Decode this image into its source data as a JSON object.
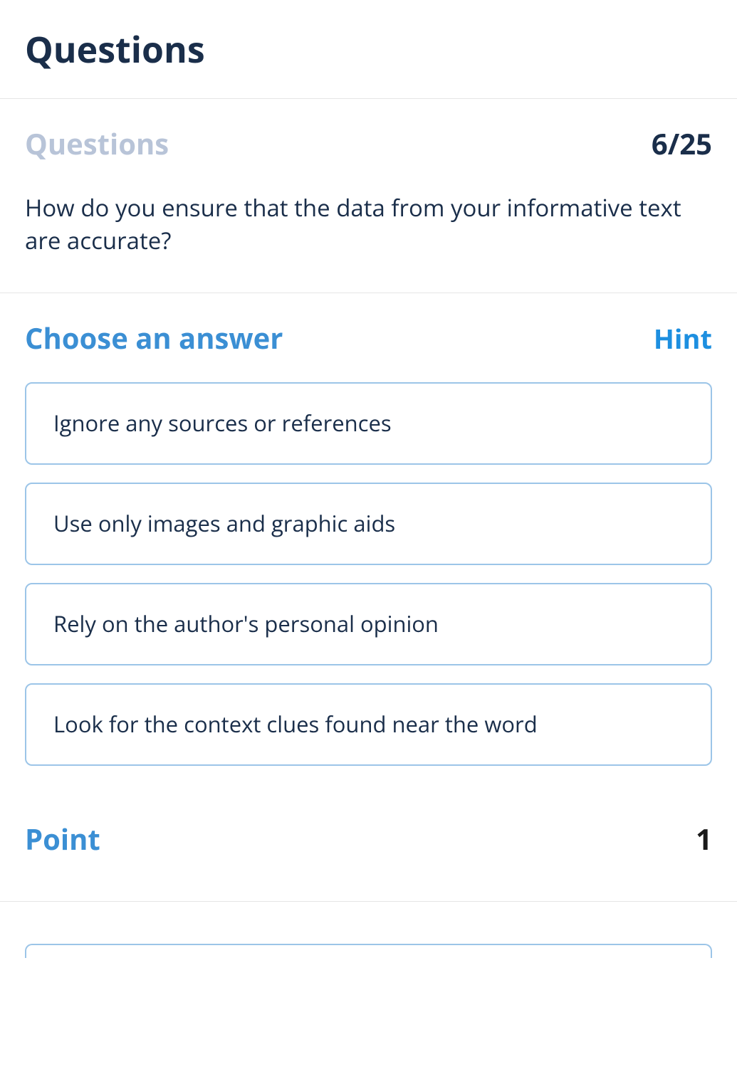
{
  "header": {
    "title": "Questions"
  },
  "question": {
    "label": "Questions",
    "counter": "6/25",
    "text": "How do you ensure that the data from your informative text are accurate?"
  },
  "answers": {
    "choose_label": "Choose an answer",
    "hint_label": "Hint",
    "options": [
      "Ignore any sources or references",
      "Use only images and graphic aids",
      "Rely on the author's personal opinion",
      "Look for the context clues found near the word"
    ]
  },
  "point": {
    "label": "Point",
    "value": "1"
  },
  "colors": {
    "text_primary": "#1a2e4a",
    "text_muted": "#b8c4d8",
    "accent": "#3b8fd4",
    "hint": "#1d8fe0",
    "option_border": "#9cc5e8",
    "divider": "#e5e5e5",
    "background": "#ffffff"
  }
}
